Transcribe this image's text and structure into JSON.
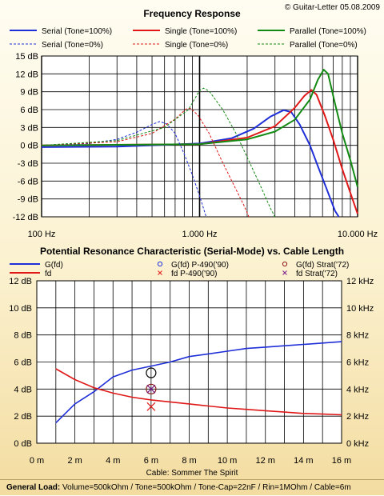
{
  "copyright": "© Guitar-Letter 05.08.2009",
  "footer": {
    "label": "General Load:",
    "text": "Volume=500kOhm / Tone=500kOhm / Tone-Cap=22nF / Rin=1MOhm / Cable=6m"
  },
  "colors": {
    "blue": "#1f2fd8",
    "red": "#e01818",
    "green": "#138a13"
  },
  "chart_data": [
    {
      "type": "line",
      "title": "Frequency Response",
      "x_scale": "log",
      "xlim": [
        100,
        10000
      ],
      "ylim": [
        -12,
        15
      ],
      "x_ticks": [
        100,
        1000,
        10000
      ],
      "x_tick_labels": [
        "100 Hz",
        "1.000 Hz",
        "10.000 Hz"
      ],
      "y_ticks": [
        15,
        12,
        9,
        6,
        3,
        0,
        -3,
        -6,
        -9,
        -12
      ],
      "y_tick_labels": [
        "15 dB",
        "12 dB",
        "9 dB",
        "6 dB",
        "3 dB",
        "0 dB",
        "-3 dB",
        "-6 dB",
        "-9 dB",
        "-12 dB"
      ],
      "grid": true,
      "legend_position": "top",
      "series": [
        {
          "name": "Serial (Tone=100%)",
          "color": "blue",
          "dash": false,
          "points": [
            [
              100,
              -0.3
            ],
            [
              300,
              -0.2
            ],
            [
              1000,
              0.3
            ],
            [
              1600,
              1.2
            ],
            [
              2200,
              2.8
            ],
            [
              2800,
              4.8
            ],
            [
              3400,
              5.9
            ],
            [
              3800,
              5.6
            ],
            [
              4300,
              3.5
            ],
            [
              5000,
              0
            ],
            [
              5600,
              -3.5
            ],
            [
              6300,
              -7
            ],
            [
              7200,
              -11
            ],
            [
              7600,
              -12
            ]
          ]
        },
        {
          "name": "Single (Tone=100%)",
          "color": "red",
          "dash": false,
          "points": [
            [
              100,
              0
            ],
            [
              1000,
              0.2
            ],
            [
              2000,
              1.3
            ],
            [
              3000,
              3.2
            ],
            [
              4000,
              6.3
            ],
            [
              4600,
              8.3
            ],
            [
              5100,
              9.3
            ],
            [
              5500,
              8.5
            ],
            [
              6200,
              5
            ],
            [
              7000,
              1
            ],
            [
              8000,
              -4
            ],
            [
              9000,
              -8
            ],
            [
              10000,
              -11.5
            ]
          ]
        },
        {
          "name": "Parallel (Tone=100%)",
          "color": "green",
          "dash": false,
          "points": [
            [
              100,
              0
            ],
            [
              1000,
              0.2
            ],
            [
              2000,
              1
            ],
            [
              3000,
              2.3
            ],
            [
              4000,
              4.3
            ],
            [
              5000,
              7.7
            ],
            [
              5600,
              11
            ],
            [
              6100,
              12.7
            ],
            [
              6500,
              12
            ],
            [
              7200,
              7
            ],
            [
              8000,
              2
            ],
            [
              9000,
              -2.5
            ],
            [
              10000,
              -7
            ]
          ]
        },
        {
          "name": "Serial (Tone=0%)",
          "color": "blue",
          "dash": true,
          "points": [
            [
              100,
              0
            ],
            [
              200,
              0.3
            ],
            [
              300,
              1
            ],
            [
              400,
              2.2
            ],
            [
              500,
              3.5
            ],
            [
              560,
              4
            ],
            [
              620,
              3.6
            ],
            [
              700,
              2
            ],
            [
              800,
              -1.5
            ],
            [
              900,
              -5
            ],
            [
              1000,
              -8.5
            ],
            [
              1100,
              -12
            ]
          ]
        },
        {
          "name": "Single (Tone=0%)",
          "color": "red",
          "dash": true,
          "points": [
            [
              100,
              0
            ],
            [
              300,
              0.6
            ],
            [
              500,
              2
            ],
            [
              700,
              4.4
            ],
            [
              820,
              6.1
            ],
            [
              880,
              6.2
            ],
            [
              980,
              5
            ],
            [
              1150,
              2
            ],
            [
              1350,
              -2
            ],
            [
              1600,
              -6
            ],
            [
              1900,
              -10
            ],
            [
              2050,
              -12
            ]
          ]
        },
        {
          "name": "Parallel (Tone=0%)",
          "color": "green",
          "dash": true,
          "points": [
            [
              100,
              0
            ],
            [
              300,
              0.8
            ],
            [
              600,
              3
            ],
            [
              850,
              6
            ],
            [
              1000,
              9.2
            ],
            [
              1060,
              9.6
            ],
            [
              1150,
              9.1
            ],
            [
              1400,
              6
            ],
            [
              1700,
              2
            ],
            [
              2000,
              -2
            ],
            [
              2400,
              -6.5
            ],
            [
              2800,
              -10.5
            ],
            [
              3000,
              -12
            ]
          ]
        }
      ]
    },
    {
      "type": "line",
      "title": "Potential Resonance Characteristic (Serial-Mode) vs. Cable Length",
      "xlabel": "Cable: Sommer The Spirit",
      "xlim": [
        0,
        16
      ],
      "ylim": [
        0,
        12
      ],
      "y2lim": [
        0,
        12
      ],
      "x_ticks": [
        0,
        2,
        4,
        6,
        8,
        10,
        12,
        14,
        16
      ],
      "x_tick_labels": [
        "0 m",
        "2 m",
        "4 m",
        "6 m",
        "8 m",
        "10 m",
        "12 m",
        "14 m",
        "16 m"
      ],
      "y_ticks": [
        0,
        2,
        4,
        6,
        8,
        10,
        12
      ],
      "y_tick_labels": [
        "0 dB",
        "2 dB",
        "4 dB",
        "6 dB",
        "8 dB",
        "10 dB",
        "12 dB"
      ],
      "y2_tick_labels": [
        "0 kHz",
        "2 kHz",
        "4 kHz",
        "6 kHz",
        "8 kHz",
        "10 kHz",
        "12 kHz"
      ],
      "grid": true,
      "legend_position": "top",
      "series": [
        {
          "name": "G(fd)",
          "color": "blue",
          "axis": "left",
          "points": [
            [
              1,
              1.5
            ],
            [
              2,
              2.9
            ],
            [
              3,
              3.8
            ],
            [
              4,
              4.9
            ],
            [
              5,
              5.4
            ],
            [
              6,
              5.7
            ],
            [
              7,
              6
            ],
            [
              8,
              6.4
            ],
            [
              9,
              6.6
            ],
            [
              10,
              6.8
            ],
            [
              11,
              7
            ],
            [
              12,
              7.1
            ],
            [
              13,
              7.2
            ],
            [
              14,
              7.3
            ],
            [
              15,
              7.4
            ],
            [
              16,
              7.5
            ]
          ]
        },
        {
          "name": "fd",
          "color": "red",
          "axis": "right",
          "points": [
            [
              1,
              5.5
            ],
            [
              2,
              4.7
            ],
            [
              3,
              4.1
            ],
            [
              4,
              3.7
            ],
            [
              5,
              3.4
            ],
            [
              6,
              3.2
            ],
            [
              7,
              3.05
            ],
            [
              8,
              2.9
            ],
            [
              9,
              2.75
            ],
            [
              10,
              2.6
            ],
            [
              11,
              2.5
            ],
            [
              12,
              2.4
            ],
            [
              13,
              2.3
            ],
            [
              14,
              2.2
            ],
            [
              15,
              2.15
            ],
            [
              16,
              2.1
            ]
          ]
        }
      ],
      "markers": [
        {
          "name": "G(fd) P-490('90)",
          "color": "blue",
          "symbol": "circle",
          "x": 6,
          "y": 5.2
        },
        {
          "name": "G(fd) Strat('72)",
          "color": "brown",
          "symbol": "circle",
          "x": 6,
          "y": 4.0
        },
        {
          "name": "fd P-490('90)",
          "color": "red",
          "symbol": "x",
          "x": 6,
          "y": 2.7
        },
        {
          "name": "fd Strat('72)",
          "color": "purple",
          "symbol": "x",
          "x": 6,
          "y": 4.0
        }
      ]
    }
  ]
}
